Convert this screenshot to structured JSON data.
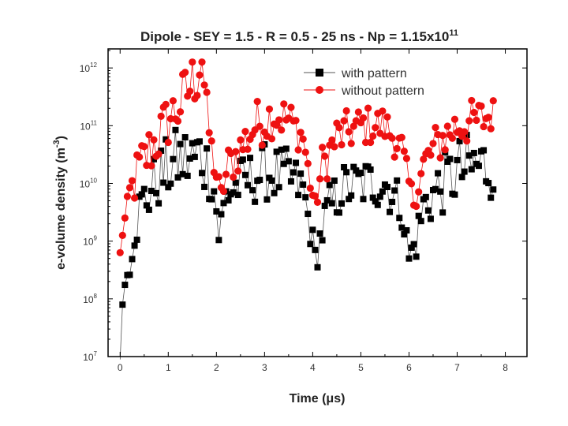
{
  "chart_data": {
    "type": "scatter",
    "title": "Dipole - SEY = 1.5 - R = 0.5 - 25 ns - Np = 1.15x10",
    "title_superscript": "11",
    "xlabel": "Time (μs)",
    "ylabel": "e-volume density (m",
    "ylabel_superscript": "-3",
    "ylabel_suffix": ")",
    "xlim": [
      -0.25,
      8.45
    ],
    "ylim_log10": [
      7,
      12.33
    ],
    "x_ticks": [
      "0",
      "1",
      "2",
      "3",
      "4",
      "5",
      "6",
      "7",
      "8"
    ],
    "y_ticks": [
      {
        "exp": 7,
        "label": "10",
        "sup": "7"
      },
      {
        "exp": 8,
        "label": "10",
        "sup": "8"
      },
      {
        "exp": 9,
        "label": "10",
        "sup": "9"
      },
      {
        "exp": 10,
        "label": "10",
        "sup": "10"
      },
      {
        "exp": 11,
        "label": "10",
        "sup": "11"
      },
      {
        "exp": 12,
        "label": "10",
        "sup": "12"
      }
    ],
    "grid": false,
    "legend_position": "top-right",
    "series": [
      {
        "name": "with pattern",
        "color": "#000000",
        "marker": "square",
        "line_color": "#555555"
      },
      {
        "name": "without pattern",
        "color": "#ee1111",
        "marker": "circle",
        "line_color": "#ee1111"
      }
    ],
    "model": {
      "note": "series values generated per point from these anchors (time in μs, log10 density)",
      "step": 0.05,
      "without_anchors": [
        [
          0,
          8.8,
          0
        ],
        [
          0.1,
          9.4,
          0
        ],
        [
          0.2,
          9.8,
          0.35
        ],
        [
          0.4,
          10.25,
          0.5
        ],
        [
          0.6,
          10.55,
          0.5
        ],
        [
          0.8,
          10.8,
          0.5
        ],
        [
          1.0,
          11.1,
          0.5
        ],
        [
          1.2,
          11.3,
          0.5
        ],
        [
          1.4,
          11.6,
          0.55
        ],
        [
          1.6,
          11.9,
          0.55
        ],
        [
          1.7,
          12.2,
          0.4
        ],
        [
          1.8,
          11.2,
          0.4
        ],
        [
          1.95,
          10.3,
          0.2
        ],
        [
          2.1,
          9.8,
          0.2
        ],
        [
          2.25,
          10.3,
          0.4
        ],
        [
          2.5,
          10.6,
          0.4
        ],
        [
          2.8,
          11.0,
          0.45
        ],
        [
          3.2,
          11.2,
          0.4
        ],
        [
          3.5,
          11.1,
          0.4
        ],
        [
          3.8,
          10.8,
          0.3
        ],
        [
          3.95,
          10.0,
          0.2
        ],
        [
          4.05,
          9.6,
          0.2
        ],
        [
          4.2,
          10.3,
          0.4
        ],
        [
          4.5,
          10.8,
          0.4
        ],
        [
          5.0,
          11.0,
          0.35
        ],
        [
          5.5,
          11.0,
          0.35
        ],
        [
          5.85,
          10.6,
          0.3
        ],
        [
          6.0,
          10.0,
          0.2
        ],
        [
          6.1,
          9.7,
          0.2
        ],
        [
          6.3,
          10.3,
          0.4
        ],
        [
          6.6,
          10.7,
          0.4
        ],
        [
          7.0,
          11.0,
          0.4
        ],
        [
          7.5,
          11.1,
          0.4
        ],
        [
          7.75,
          11.2,
          0.3
        ]
      ],
      "with_anchors": [
        [
          0,
          6.9,
          0
        ],
        [
          0.05,
          7.9,
          0
        ],
        [
          0.15,
          8.5,
          0.4
        ],
        [
          0.3,
          9.3,
          0.5
        ],
        [
          0.5,
          9.7,
          0.5
        ],
        [
          0.8,
          10.1,
          0.55
        ],
        [
          1.2,
          10.4,
          0.6
        ],
        [
          1.5,
          10.4,
          0.65
        ],
        [
          1.7,
          10.5,
          0.7
        ],
        [
          1.85,
          10.2,
          0.5
        ],
        [
          1.97,
          9.8,
          0.3
        ],
        [
          2.05,
          9.1,
          0.3
        ],
        [
          2.2,
          9.8,
          0.4
        ],
        [
          2.5,
          10.0,
          0.45
        ],
        [
          3.0,
          10.2,
          0.5
        ],
        [
          3.5,
          10.1,
          0.5
        ],
        [
          3.8,
          9.9,
          0.4
        ],
        [
          3.95,
          9.2,
          0.3
        ],
        [
          4.05,
          8.7,
          0.3
        ],
        [
          4.3,
          9.5,
          0.45
        ],
        [
          4.6,
          9.9,
          0.45
        ],
        [
          5.0,
          10.0,
          0.45
        ],
        [
          5.5,
          10.0,
          0.45
        ],
        [
          5.85,
          9.6,
          0.4
        ],
        [
          6.0,
          8.7,
          0.3
        ],
        [
          6.15,
          9.0,
          0.35
        ],
        [
          6.3,
          9.6,
          0.45
        ],
        [
          6.6,
          9.9,
          0.5
        ],
        [
          7.0,
          10.2,
          0.6
        ],
        [
          7.4,
          10.3,
          0.65
        ],
        [
          7.75,
          10.3,
          0.6
        ]
      ]
    }
  }
}
